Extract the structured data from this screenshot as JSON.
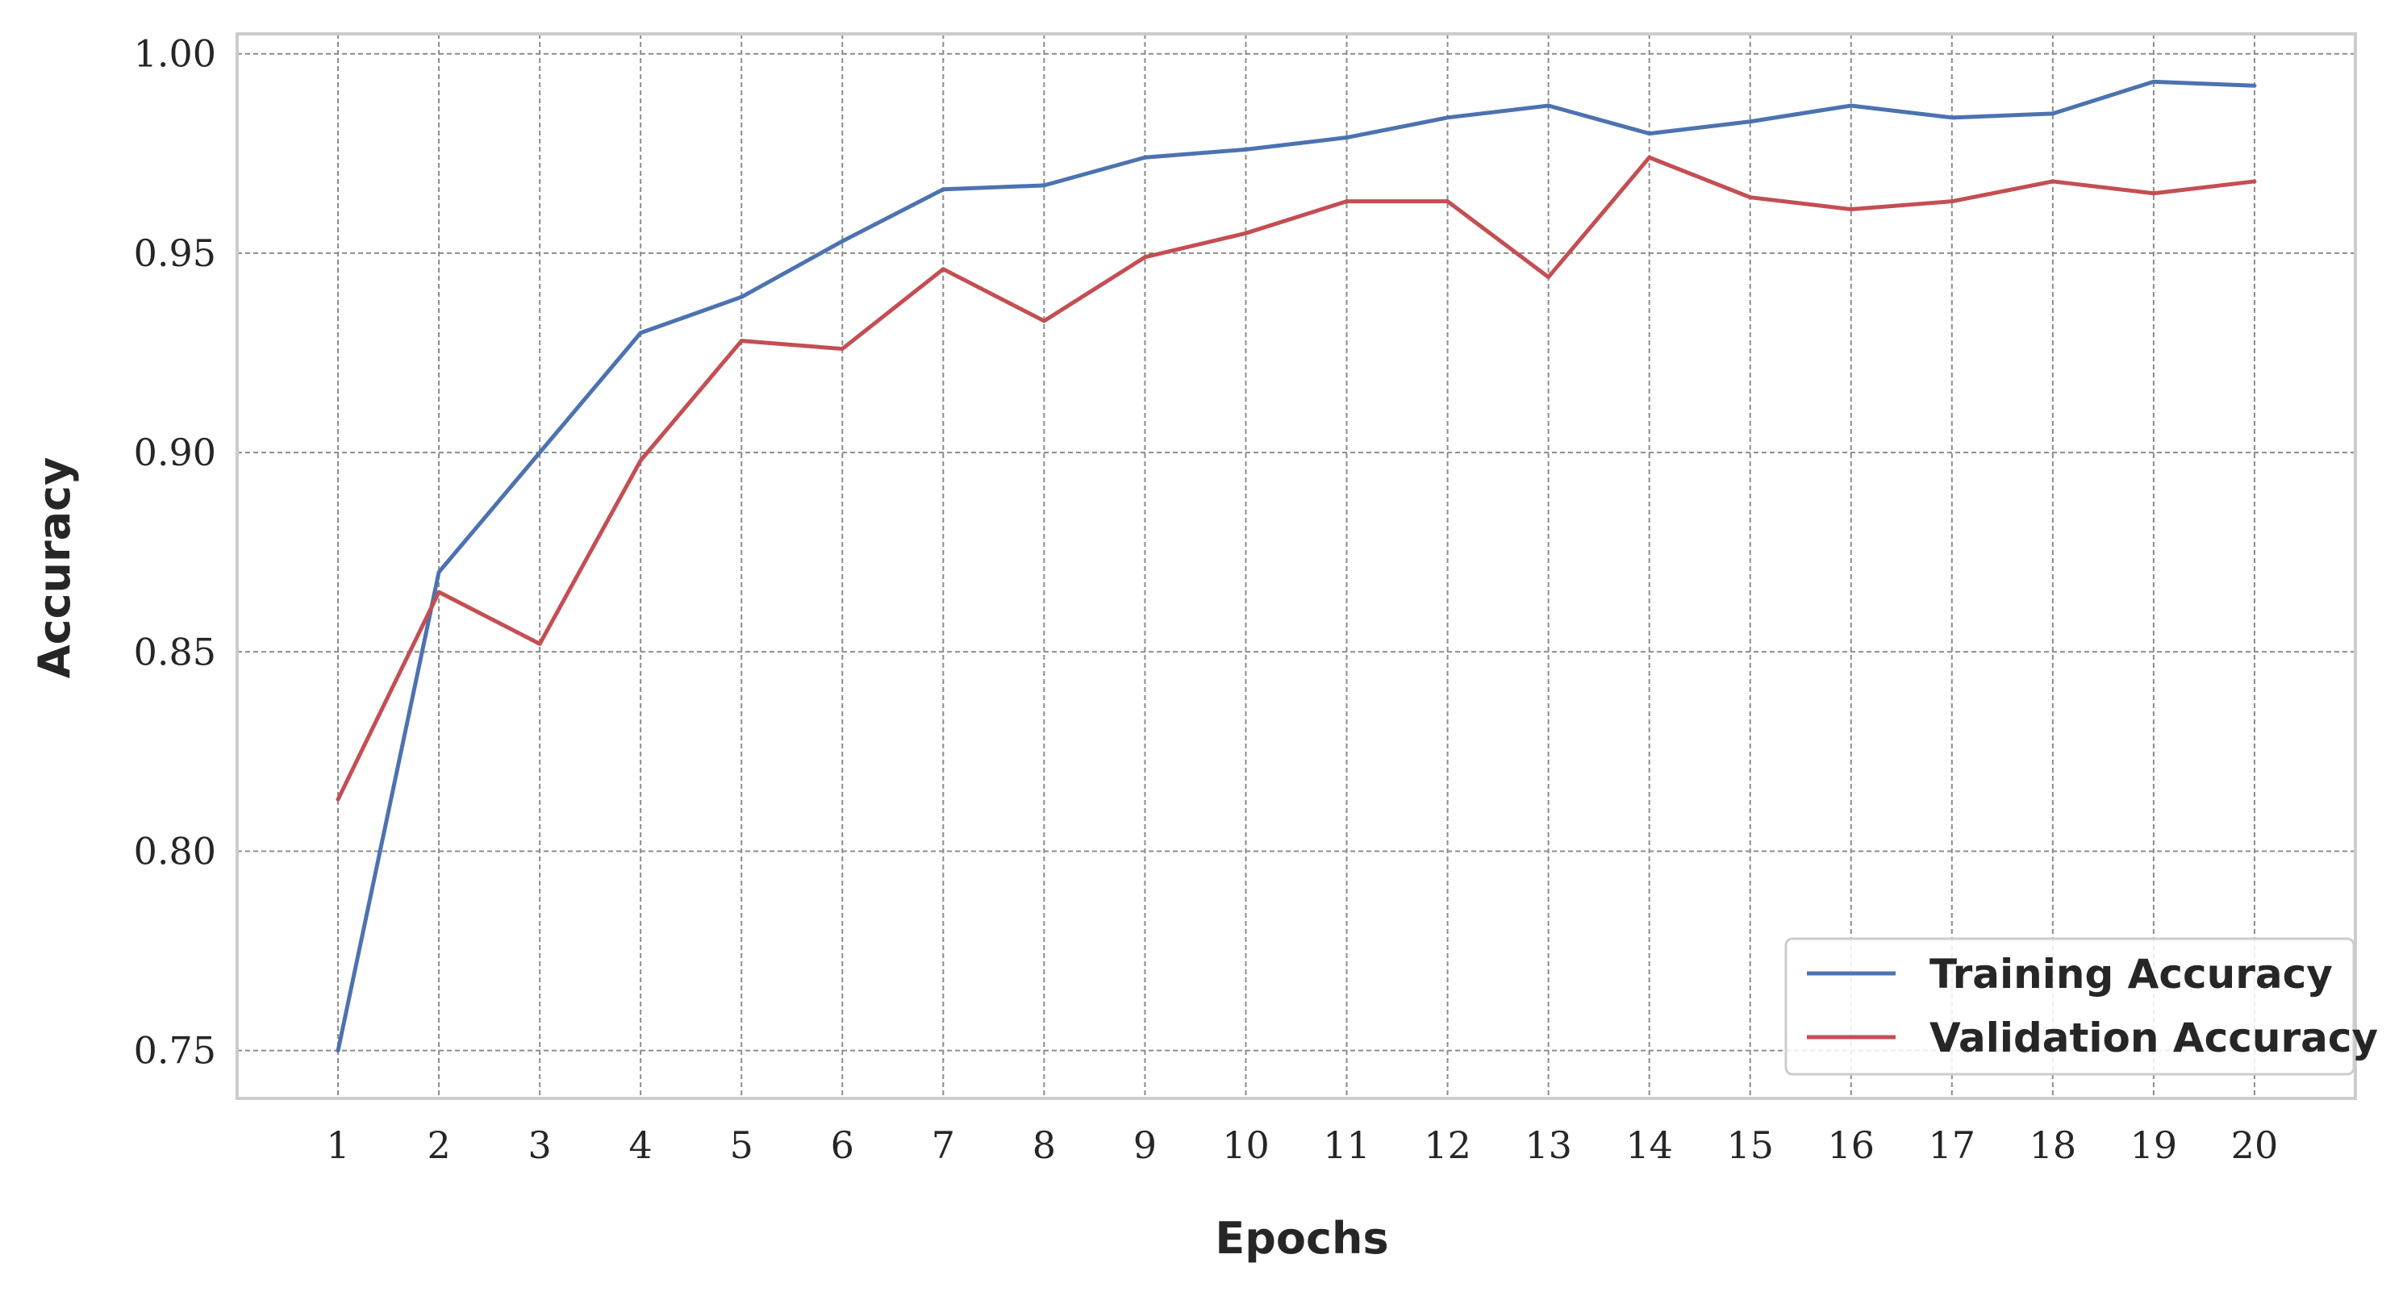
{
  "chart_data": {
    "type": "line",
    "xlabel": "Epochs",
    "ylabel": "Accuracy",
    "x": [
      1,
      2,
      3,
      4,
      5,
      6,
      7,
      8,
      9,
      10,
      11,
      12,
      13,
      14,
      15,
      16,
      17,
      18,
      19,
      20
    ],
    "xticks": [
      "1",
      "2",
      "3",
      "4",
      "5",
      "6",
      "7",
      "8",
      "9",
      "10",
      "11",
      "12",
      "13",
      "14",
      "15",
      "16",
      "17",
      "18",
      "19",
      "20"
    ],
    "yticks": [
      "0.75",
      "0.80",
      "0.85",
      "0.90",
      "0.95",
      "1.00"
    ],
    "ytick_values": [
      0.75,
      0.8,
      0.85,
      0.9,
      0.95,
      1.0
    ],
    "xlim": [
      0,
      21
    ],
    "ylim": [
      0.738,
      1.005
    ],
    "grid": true,
    "legend_position": "lower-right",
    "series": [
      {
        "name": "Training Accuracy",
        "color": "#4c72b0",
        "values": [
          0.75,
          0.87,
          0.9,
          0.93,
          0.939,
          0.953,
          0.966,
          0.967,
          0.974,
          0.976,
          0.979,
          0.984,
          0.987,
          0.98,
          0.983,
          0.987,
          0.984,
          0.985,
          0.993,
          0.992
        ]
      },
      {
        "name": "Validation Accuracy",
        "color": "#c44e52",
        "values": [
          0.813,
          0.865,
          0.852,
          0.898,
          0.928,
          0.926,
          0.946,
          0.933,
          0.949,
          0.955,
          0.963,
          0.963,
          0.944,
          0.974,
          0.964,
          0.961,
          0.963,
          0.968,
          0.965,
          0.968
        ]
      }
    ]
  }
}
